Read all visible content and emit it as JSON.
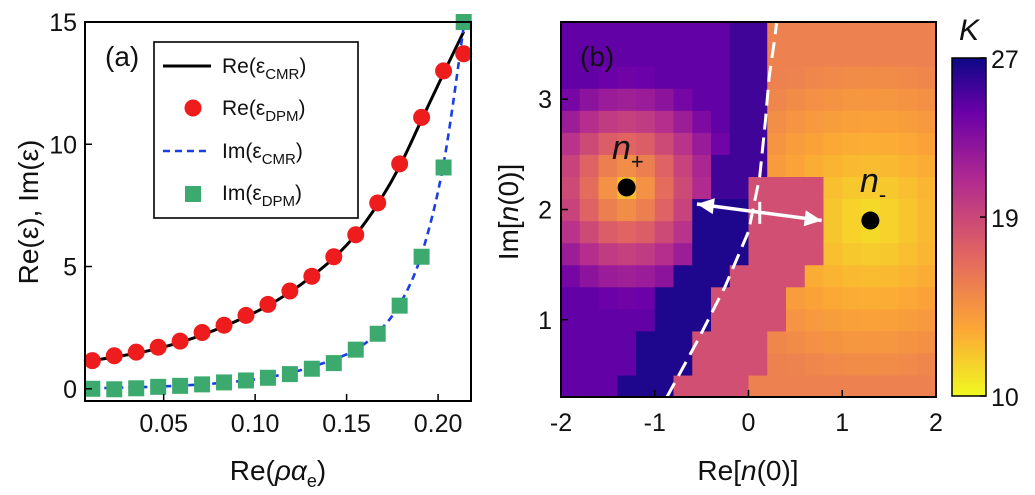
{
  "chart_data": [
    {
      "panel": "(a)",
      "type": "line",
      "xlabel": "Re(ρα_e)",
      "ylabel": "Re(ε), Im(ε)",
      "xlim": [
        0.007,
        0.218
      ],
      "ylim": [
        -0.5,
        15
      ],
      "xticks": [
        0.05,
        0.1,
        0.15,
        0.2
      ],
      "xtick_labels": [
        "0.05",
        "0.10",
        "0.15",
        "0.20"
      ],
      "yticks": [
        0,
        5,
        10,
        15
      ],
      "ytick_labels": [
        "0",
        "5",
        "10",
        "15"
      ],
      "legend_position": "top-right",
      "series": [
        {
          "name": "Re(ε_CMR)",
          "label": "Re(ε",
          "sub": "CMR",
          "suffix": ")",
          "style": "solid-line",
          "color": "#000000",
          "x": [
            0.011,
            0.023,
            0.035,
            0.047,
            0.059,
            0.071,
            0.083,
            0.095,
            0.107,
            0.119,
            0.131,
            0.143,
            0.155,
            0.167,
            0.179,
            0.191,
            0.203,
            0.214
          ],
          "y": [
            1.15,
            1.3,
            1.45,
            1.65,
            1.9,
            2.2,
            2.55,
            2.95,
            3.4,
            3.95,
            4.6,
            5.35,
            6.3,
            7.55,
            9.1,
            11.0,
            12.9,
            14.6
          ]
        },
        {
          "name": "Re(ε_DPM)",
          "label": "Re(ε",
          "sub": "DPM",
          "suffix": ")",
          "style": "circle-markers",
          "color": "#ee1c1c",
          "x": [
            0.011,
            0.023,
            0.035,
            0.047,
            0.059,
            0.071,
            0.083,
            0.095,
            0.107,
            0.119,
            0.131,
            0.143,
            0.155,
            0.167,
            0.179,
            0.191,
            0.203,
            0.214
          ],
          "y": [
            1.15,
            1.35,
            1.5,
            1.7,
            1.95,
            2.3,
            2.6,
            3.0,
            3.45,
            4.0,
            4.6,
            5.4,
            6.3,
            7.6,
            9.2,
            11.1,
            13.0,
            13.7
          ]
        },
        {
          "name": "Im(ε_CMR)",
          "label": "Im(ε",
          "sub": "CMR",
          "suffix": ")",
          "style": "dashed-line",
          "color": "#1a3ee6",
          "x": [
            0.011,
            0.023,
            0.035,
            0.047,
            0.059,
            0.071,
            0.083,
            0.095,
            0.107,
            0.119,
            0.131,
            0.143,
            0.155,
            0.167,
            0.179,
            0.191,
            0.203,
            0.214
          ],
          "y": [
            0.02,
            0.04,
            0.06,
            0.09,
            0.13,
            0.18,
            0.25,
            0.34,
            0.47,
            0.65,
            0.9,
            1.2,
            1.6,
            2.3,
            3.45,
            5.5,
            9.2,
            14.8
          ]
        },
        {
          "name": "Im(ε_DPM)",
          "label": "Im(ε",
          "sub": "DPM",
          "suffix": ")",
          "style": "square-markers",
          "color": "#3caa6e",
          "x": [
            0.011,
            0.023,
            0.035,
            0.047,
            0.059,
            0.071,
            0.083,
            0.095,
            0.107,
            0.119,
            0.131,
            0.143,
            0.155,
            0.167,
            0.179,
            0.191,
            0.203,
            0.214
          ],
          "y": [
            0.0,
            -0.02,
            0.02,
            0.08,
            0.12,
            0.18,
            0.26,
            0.34,
            0.45,
            0.6,
            0.82,
            1.05,
            1.6,
            2.25,
            3.4,
            5.4,
            9.05,
            15.0
          ]
        }
      ]
    },
    {
      "panel": "(b)",
      "type": "heatmap",
      "xlabel": "Re[n(0)]",
      "ylabel": "Im[n(0)]",
      "xlim": [
        -2,
        2
      ],
      "ylim": [
        0.3,
        3.7
      ],
      "xticks": [
        -2,
        -1,
        0,
        1,
        2
      ],
      "xtick_labels": [
        "-2",
        "-1",
        "0",
        "1",
        "2"
      ],
      "yticks": [
        1,
        2,
        3
      ],
      "ytick_labels": [
        "1",
        "2",
        "3"
      ],
      "grid_resolution": "0.2 x 0.2",
      "colorbar": {
        "title": "K",
        "vmin": 10,
        "vmax": 27,
        "ticks": [
          10,
          19,
          27
        ],
        "tick_labels": [
          "10",
          "19",
          "27"
        ],
        "colormap": "plasma (reversed)",
        "stops": [
          "#f0f921",
          "#fca636",
          "#e16462",
          "#b12a90",
          "#6a00a8",
          "#0d0887"
        ]
      },
      "basins": [
        {
          "root": "n+",
          "label": "n",
          "sub": "+",
          "center": [
            -1.3,
            2.2
          ],
          "k_min": 12.5,
          "k_far": 25
        },
        {
          "root": "n-",
          "label": "n",
          "sub": "-",
          "center": [
            1.3,
            1.9
          ],
          "k_min": 11.0,
          "k_far": 15.5
        }
      ],
      "basin_boundary": {
        "style": "white-dashed",
        "x": [
          -0.87,
          -0.55,
          -0.25,
          0.0,
          0.12,
          0.18,
          0.22,
          0.28,
          0.3
        ],
        "y": [
          0.3,
          0.8,
          1.3,
          1.8,
          2.3,
          2.8,
          3.2,
          3.55,
          3.7
        ]
      },
      "arrow": {
        "from": [
          -0.55,
          2.05
        ],
        "to": [
          0.78,
          1.9
        ],
        "midpoint_marker": [
          0.12,
          1.97
        ],
        "style": "white double-headed"
      }
    }
  ]
}
